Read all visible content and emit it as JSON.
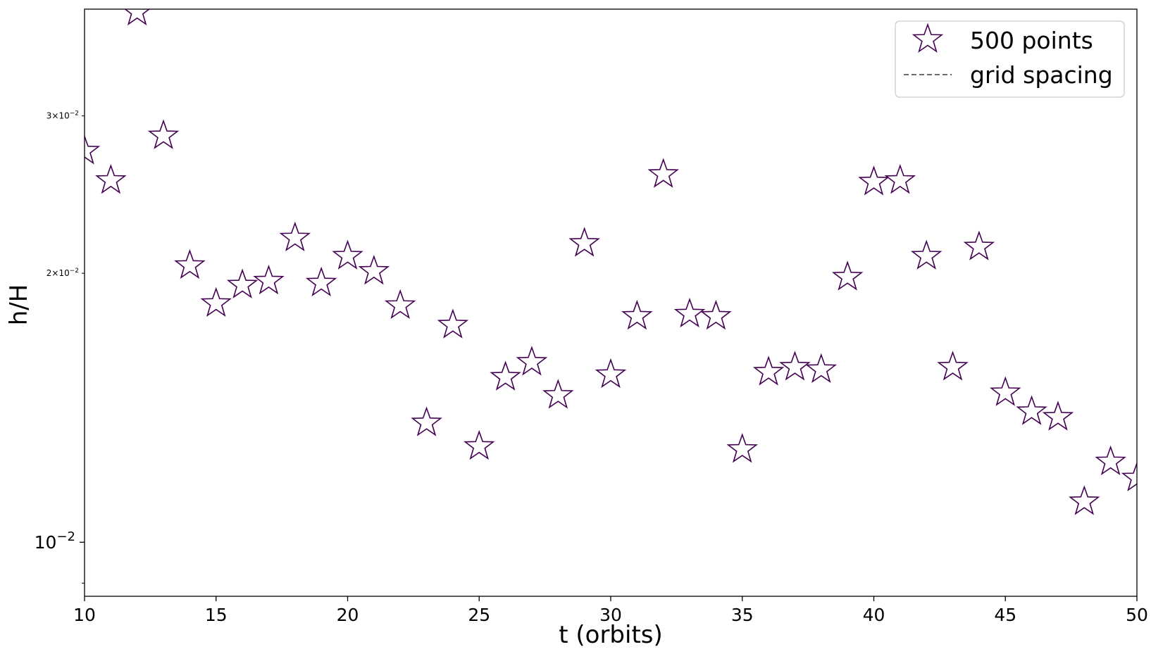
{
  "chart_data": {
    "type": "scatter",
    "xlabel": "t (orbits)",
    "ylabel": "h/H",
    "xlim": [
      10,
      50
    ],
    "ylim": [
      0.0087,
      0.0395
    ],
    "yscale": "log",
    "grid": false,
    "legend_position": "top-right",
    "x_ticks": [
      10,
      15,
      20,
      25,
      30,
      35,
      40,
      45,
      50
    ],
    "x_tick_labels": [
      "10",
      "15",
      "20",
      "25",
      "30",
      "35",
      "40",
      "45",
      "50"
    ],
    "y_major_ticks": [
      {
        "value": 0.01,
        "base": "10",
        "exp": "−2",
        "label": "10−2"
      }
    ],
    "y_minor_labeled_ticks": [
      {
        "value": 0.02,
        "mant": "2",
        "base": "10",
        "exp": "−2",
        "label": "2×10−2"
      },
      {
        "value": 0.03,
        "mant": "3",
        "base": "10",
        "exp": "−2",
        "label": "3×10−2"
      }
    ],
    "y_minor_unlabeled_ticks": [
      0.009
    ],
    "series": [
      {
        "name": "500 points",
        "marker": "star",
        "marker_face": "#ffffff",
        "marker_edge": "#440154",
        "x": [
          10,
          11,
          12,
          13,
          14,
          15,
          16,
          17,
          18,
          19,
          20,
          21,
          22,
          23,
          24,
          25,
          26,
          27,
          28,
          29,
          30,
          31,
          32,
          33,
          34,
          35,
          36,
          37,
          38,
          39,
          40,
          41,
          42,
          43,
          44,
          45,
          46,
          47,
          48,
          49,
          50
        ],
        "y": [
          0.0274,
          0.0254,
          0.0392,
          0.0285,
          0.0204,
          0.0185,
          0.0194,
          0.0196,
          0.0219,
          0.0195,
          0.0209,
          0.0201,
          0.0184,
          0.0136,
          0.0175,
          0.0128,
          0.0153,
          0.0159,
          0.0146,
          0.0216,
          0.0154,
          0.0179,
          0.0258,
          0.018,
          0.0179,
          0.0127,
          0.0155,
          0.0157,
          0.0156,
          0.0198,
          0.0253,
          0.0254,
          0.0209,
          0.0157,
          0.0214,
          0.0147,
          0.014,
          0.0138,
          0.0111,
          0.0123,
          0.0118
        ]
      },
      {
        "name": "grid spacing",
        "line_style": "dashed",
        "color": "#6b6b6b",
        "x": [],
        "y": []
      }
    ]
  }
}
